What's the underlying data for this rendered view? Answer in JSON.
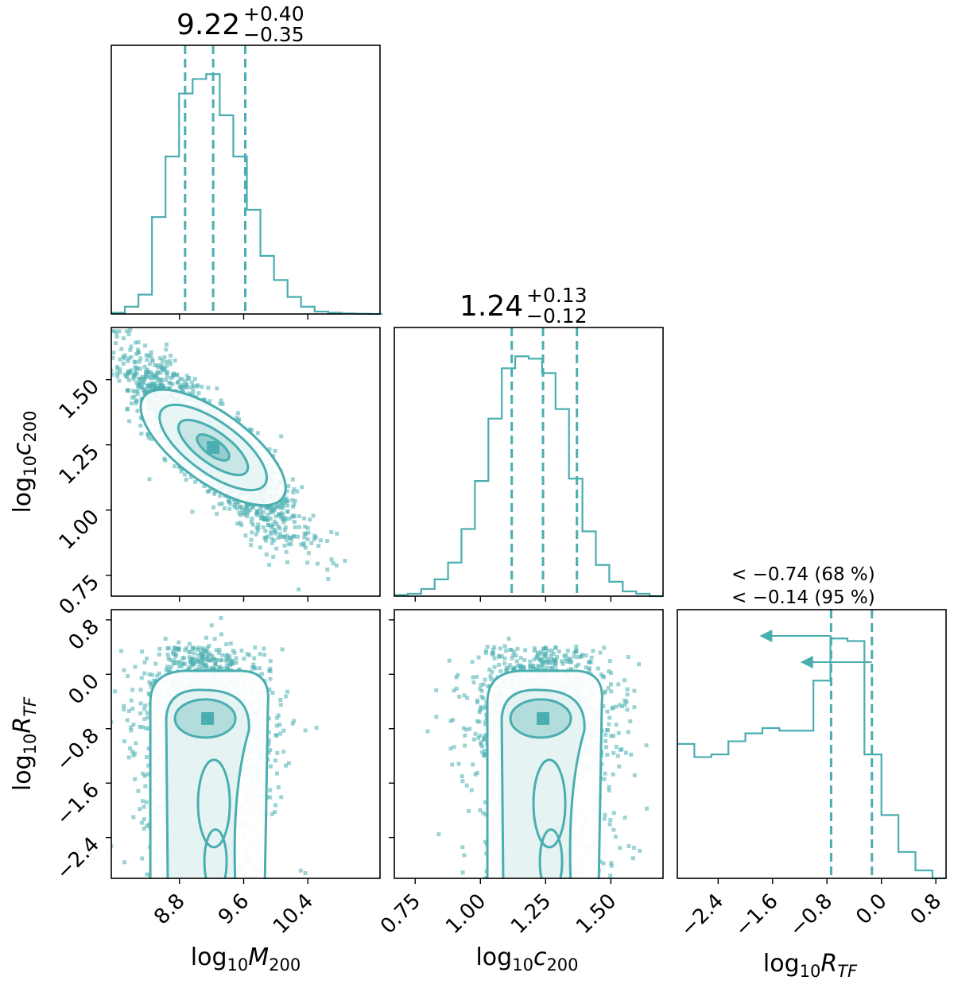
{
  "colors": {
    "series": "#4aaeb0",
    "axis": "#000000",
    "background": "#ffffff"
  },
  "chart_data": {
    "type": "corner",
    "parameters": [
      {
        "key": "M200",
        "label_base": "log",
        "label_sub": "10",
        "label_sym": "M",
        "label_sym_sub": "200"
      },
      {
        "key": "c200",
        "label_base": "log",
        "label_sub": "10",
        "label_sym": "c",
        "label_sym_sub": "200"
      },
      {
        "key": "RTF",
        "label_base": "log",
        "label_sub": "10",
        "label_sym": "R",
        "label_sym_sub": "TF"
      }
    ],
    "ranges": {
      "M200": [
        7.95,
        11.3
      ],
      "c200": [
        0.67,
        1.7
      ],
      "RTF": [
        -3.0,
        0.95
      ]
    },
    "ticks": {
      "M200": [
        "8.8",
        "9.6",
        "10.4"
      ],
      "c200": [
        "0.75",
        "1.00",
        "1.25",
        "1.50"
      ],
      "RTF": [
        "−2.4",
        "−1.6",
        "−0.8",
        "0.0",
        "0.8"
      ]
    },
    "tick_values": {
      "M200": [
        8.8,
        9.6,
        10.4
      ],
      "c200": [
        0.75,
        1.0,
        1.25,
        1.5
      ],
      "RTF": [
        -2.4,
        -1.6,
        -0.8,
        0.0,
        0.8
      ]
    },
    "marginals": {
      "M200": {
        "summary": {
          "median": "9.22",
          "plus": "+0.40",
          "minus": "−0.35"
        },
        "quantiles": [
          8.87,
          9.22,
          9.62
        ],
        "bin_edges": [
          7.95,
          8.119,
          8.288,
          8.457,
          8.626,
          8.795,
          8.964,
          9.133,
          9.302,
          9.471,
          9.64,
          9.809,
          9.978,
          10.147,
          10.316,
          10.485,
          10.654,
          10.823,
          10.992,
          11.161,
          11.33
        ],
        "counts": [
          0.005,
          0.03,
          0.08,
          0.4,
          0.65,
          0.91,
          0.97,
          0.99,
          0.82,
          0.65,
          0.43,
          0.24,
          0.14,
          0.07,
          0.03,
          0.01,
          0.005,
          0.002,
          0.001,
          0.0
        ]
      },
      "c200": {
        "summary": {
          "median": "1.24",
          "plus": "+0.13",
          "minus": "−0.12"
        },
        "quantiles": [
          1.12,
          1.24,
          1.37
        ],
        "bin_edges": [
          0.67,
          0.7215,
          0.773,
          0.8245,
          0.876,
          0.9275,
          0.979,
          1.0305,
          1.082,
          1.1335,
          1.185,
          1.2365,
          1.288,
          1.3395,
          1.391,
          1.4425,
          1.494,
          1.5455,
          1.597,
          1.6485,
          1.7
        ],
        "counts": [
          0.005,
          0.01,
          0.03,
          0.07,
          0.14,
          0.28,
          0.48,
          0.74,
          0.95,
          1.0,
          0.99,
          0.93,
          0.78,
          0.49,
          0.27,
          0.13,
          0.06,
          0.02,
          0.01,
          0.0
        ]
      },
      "RTF": {
        "limits": [
          {
            "text": "< −0.74 (68 %)",
            "value": -0.74
          },
          {
            "text": "< −0.14 (95 %)",
            "value": -0.14
          }
        ],
        "quantiles": [
          -0.74,
          -0.14
        ],
        "bin_edges": [
          -3.0,
          -2.75,
          -2.5,
          -2.25,
          -2.0,
          -1.75,
          -1.5,
          -1.25,
          -1.0,
          -0.75,
          -0.5,
          -0.25,
          0.0,
          0.25,
          0.5,
          0.75,
          0.95
        ],
        "counts": [
          0.51,
          0.46,
          0.47,
          0.52,
          0.55,
          0.57,
          0.56,
          0.56,
          0.75,
          0.91,
          0.9,
          0.47,
          0.24,
          0.1,
          0.03,
          0.0
        ]
      }
    },
    "joint": [
      {
        "x": "M200",
        "y": "c200",
        "mean": [
          9.22,
          1.24
        ],
        "sd": [
          0.38,
          0.125
        ],
        "rho": -0.87,
        "levels": [
          0.5,
          1.0,
          1.5,
          2.0
        ]
      },
      {
        "x": "M200",
        "y": "RTF",
        "mean": [
          9.15,
          -0.7
        ],
        "sd": [
          0.3,
          0.35
        ],
        "levels": [
          0.4,
          0.8,
          1.3
        ]
      },
      {
        "x": "c200",
        "y": "RTF",
        "mean": [
          1.24,
          -0.7
        ],
        "sd": [
          0.1,
          0.35
        ],
        "levels": [
          0.4,
          0.8,
          1.3
        ]
      }
    ]
  }
}
